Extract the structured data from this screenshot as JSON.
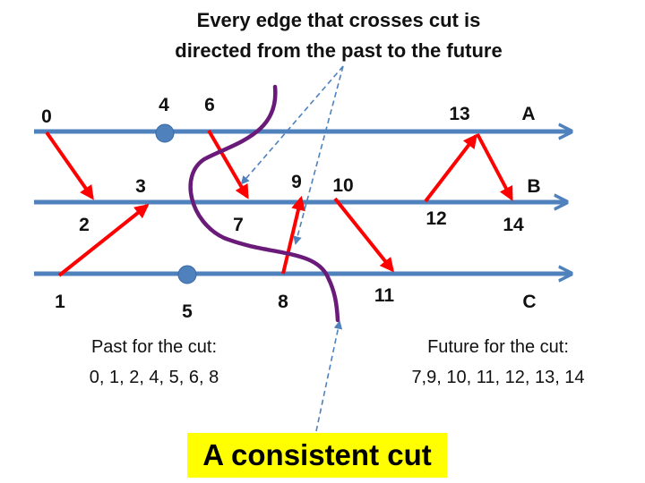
{
  "header": {
    "line1": "Every edge that crosses cut is",
    "line2": "directed from the past to the future"
  },
  "processes": [
    "A",
    "B",
    "C"
  ],
  "events": [
    {
      "id": "0",
      "label": "0",
      "process": "A"
    },
    {
      "id": "4",
      "label": "4",
      "process": "A",
      "marker": "dot"
    },
    {
      "id": "6",
      "label": "6",
      "process": "A"
    },
    {
      "id": "13",
      "label": "13",
      "process": "A"
    },
    {
      "id": "2",
      "label": "2",
      "process": "B"
    },
    {
      "id": "3",
      "label": "3",
      "process": "B"
    },
    {
      "id": "7",
      "label": "7",
      "process": "B"
    },
    {
      "id": "9",
      "label": "9",
      "process": "B"
    },
    {
      "id": "10",
      "label": "10",
      "process": "B"
    },
    {
      "id": "12",
      "label": "12",
      "process": "B"
    },
    {
      "id": "14",
      "label": "14",
      "process": "B"
    },
    {
      "id": "1",
      "label": "1",
      "process": "C"
    },
    {
      "id": "5",
      "label": "5",
      "process": "C",
      "marker": "dot"
    },
    {
      "id": "8",
      "label": "8",
      "process": "C"
    },
    {
      "id": "11",
      "label": "11",
      "process": "C"
    }
  ],
  "messages": [
    {
      "from": "0",
      "to": "2"
    },
    {
      "from": "1",
      "to": "3"
    },
    {
      "from": "6",
      "to": "7"
    },
    {
      "from": "8",
      "to": "9"
    },
    {
      "from": "10",
      "to": "11"
    },
    {
      "from": "12",
      "to": "13"
    },
    {
      "from": "13",
      "to": "14"
    }
  ],
  "past": {
    "title": "Past for the cut:",
    "events": "0, 1, 2, 4, 5, 6, 8"
  },
  "future": {
    "title": "Future for the cut:",
    "events": "7,9, 10, 11, 12, 13, 14"
  },
  "banner": "A consistent cut",
  "colors": {
    "timeline": "#4f81bd",
    "message": "#ff0000",
    "cut": "#6a1b7a",
    "pointer": "#4f81bd",
    "dot": "#4f81bd",
    "banner_bg": "#ffff00"
  }
}
